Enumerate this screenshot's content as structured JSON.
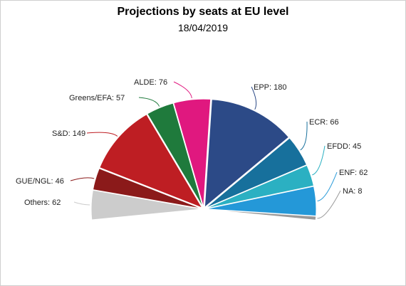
{
  "chart_data": {
    "type": "pie",
    "subtype": "parliament-semicircle",
    "title": "Projections by seats at EU level",
    "subtitle": "18/04/2019",
    "series": [
      {
        "name": "Others",
        "value": 62,
        "color": "#cccccc"
      },
      {
        "name": "GUE/NGL",
        "value": 46,
        "color": "#8b1a1a"
      },
      {
        "name": "S&D",
        "value": 149,
        "color": "#be1e23"
      },
      {
        "name": "Greens/EFA",
        "value": 57,
        "color": "#1f7a3c"
      },
      {
        "name": "ALDE",
        "value": 76,
        "color": "#e0187f"
      },
      {
        "name": "EPP",
        "value": 180,
        "color": "#2c4a87"
      },
      {
        "name": "ECR",
        "value": 66,
        "color": "#17709c"
      },
      {
        "name": "EFDD",
        "value": 45,
        "color": "#2bb0c2"
      },
      {
        "name": "ENF",
        "value": 62,
        "color": "#2498d8"
      },
      {
        "name": "NA",
        "value": 8,
        "color": "#9a9a9a"
      }
    ]
  }
}
